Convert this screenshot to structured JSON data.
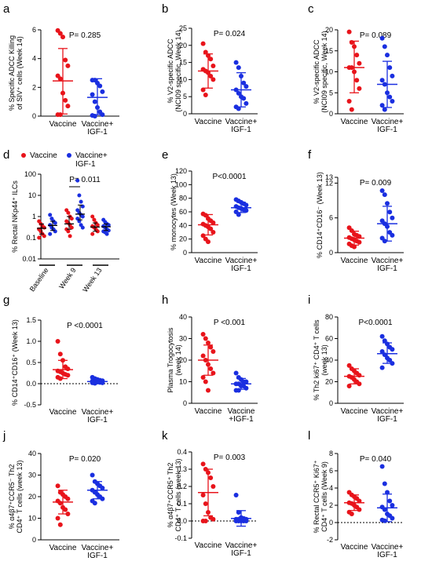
{
  "colors": {
    "vaccine": "#e8141b",
    "igf": "#1a2fe0"
  },
  "chart_data": [
    {
      "panel": "a",
      "type": "scatter",
      "pvalue": "P= 0.285",
      "ylabel": [
        "% Specific ADCC Killing",
        "of SIV⁺ cells (Week 14)"
      ],
      "ylim": [
        0,
        6
      ],
      "yticks": [
        "0",
        "2",
        "4",
        "6"
      ],
      "categories": [
        "Vaccine",
        "Vaccine+ IGF-1"
      ],
      "cat_lines": [
        [
          "Vaccine"
        ],
        [
          "Vaccine+",
          "IGF-1"
        ]
      ],
      "groups": [
        {
          "name": "Vaccine",
          "values": [
            5.95,
            5.75,
            5.5,
            3.9,
            3.5,
            2.8,
            2.6,
            1.6,
            1.1,
            0.7,
            0.1,
            0.1
          ],
          "mean": 2.45,
          "sd_low": 0.15,
          "sd_high": 4.7
        },
        {
          "name": "Vaccine+ IGF-1",
          "values": [
            2.5,
            2.5,
            2.3,
            2.1,
            1.7,
            1.5,
            1.0,
            0.6,
            0.3,
            0.1,
            0.05,
            0.0
          ],
          "mean": 1.3,
          "sd_low": 0.1,
          "sd_high": 2.6
        }
      ]
    },
    {
      "panel": "b",
      "type": "scatter",
      "pvalue": "P= 0.024",
      "ylabel": [
        "% V2-specific ADCC",
        "(NCI09 specific, Week 14)"
      ],
      "ylim": [
        0,
        25
      ],
      "yticks": [
        "0",
        "5",
        "10",
        "15",
        "20",
        "25"
      ],
      "categories": [
        "Vaccine",
        "Vaccine+ IGF-1"
      ],
      "cat_lines": [
        [
          "Vaccine"
        ],
        [
          "Vaccine+",
          "IGF-1"
        ]
      ],
      "groups": [
        {
          "name": "Vaccine",
          "values": [
            20.5,
            18,
            17,
            16,
            14,
            13,
            12.5,
            12,
            11,
            10,
            7,
            5.5
          ],
          "mean": 12.5,
          "sd_low": 7.5,
          "sd_high": 17.5
        },
        {
          "name": "Vaccine+ IGF-1",
          "values": [
            15,
            13.5,
            11,
            9,
            8,
            7,
            6,
            5,
            4.5,
            3,
            2,
            1.5
          ],
          "mean": 7,
          "sd_low": 2,
          "sd_high": 12
        }
      ]
    },
    {
      "panel": "c",
      "type": "scatter",
      "pvalue": "P= 0.089",
      "ylabel": [
        "% V2-specific ADCC",
        "(NCI09 specific, Week 14)"
      ],
      "ylim": [
        0,
        20
      ],
      "yticks": [
        "0",
        "5",
        "10",
        "15",
        "20"
      ],
      "categories": [
        "Vaccine",
        "Vaccine+ IGF-1"
      ],
      "cat_lines": [
        [
          "Vaccine"
        ],
        [
          "Vaccine+",
          "IGF-1"
        ]
      ],
      "groups": [
        {
          "name": "Vaccine",
          "values": [
            19.5,
            17,
            16,
            14,
            12,
            11,
            11,
            10,
            8,
            6,
            3,
            1
          ],
          "mean": 11,
          "sd_low": 5,
          "sd_high": 17.3
        },
        {
          "name": "Vaccine+ IGF-1",
          "values": [
            18,
            16,
            14,
            11,
            9,
            8,
            7,
            5,
            4,
            3,
            2,
            1
          ],
          "mean": 7,
          "sd_low": 1.5,
          "sd_high": 12.5
        }
      ]
    },
    {
      "panel": "d",
      "type": "scatter",
      "pvalue": "P= 0.011",
      "ylabel": [
        "% Rectal NKp44⁺ ILCs"
      ],
      "log": true,
      "ylim": [
        0.01,
        100
      ],
      "yticks": [
        "0.01",
        "0.1",
        "1",
        "10",
        "100"
      ],
      "categories": [
        "Baseline",
        "Week 9",
        "Week 13"
      ],
      "legend": [
        {
          "name": "Vaccine",
          "lines": [
            "Vaccine"
          ]
        },
        {
          "name": "Vaccine+ IGF-1",
          "lines": [
            "Vaccine+",
            "IGF-1"
          ]
        }
      ],
      "groups": [
        {
          "name": "Vaccine Baseline",
          "values": [
            0.6,
            0.45,
            0.35,
            0.3,
            0.25,
            0.2,
            0.15,
            0.12,
            0.1
          ],
          "median": 0.28,
          "q1": 0.15,
          "q3": 0.45
        },
        {
          "name": "Vaccine+ IGF-1 Baseline",
          "values": [
            1.2,
            0.8,
            0.6,
            0.5,
            0.4,
            0.3,
            0.25,
            0.2,
            0.15
          ],
          "median": 0.38,
          "q1": 0.22,
          "q3": 0.6
        },
        {
          "name": "Vaccine Week 9",
          "values": [
            2,
            1.5,
            1,
            0.8,
            0.6,
            0.5,
            0.4,
            0.3,
            0.25,
            0.2,
            0.12
          ],
          "median": 0.45,
          "q1": 0.25,
          "q3": 1.0
        },
        {
          "name": "Vaccine+ IGF-1 Week 9",
          "values": [
            50,
            10,
            5,
            3,
            2,
            1.5,
            1.2,
            1,
            0.8,
            0.6,
            0.4,
            0.3
          ],
          "median": 1.3,
          "q1": 0.7,
          "q3": 3.5
        },
        {
          "name": "Vaccine Week 13",
          "values": [
            1,
            0.7,
            0.5,
            0.4,
            0.35,
            0.3,
            0.25,
            0.2,
            0.15
          ],
          "median": 0.32,
          "q1": 0.2,
          "q3": 0.5
        },
        {
          "name": "Vaccine+ IGF-1 Week 13",
          "values": [
            0.7,
            0.55,
            0.45,
            0.4,
            0.35,
            0.3,
            0.25,
            0.22,
            0.2,
            0.18,
            0.15
          ],
          "median": 0.33,
          "q1": 0.22,
          "q3": 0.45
        }
      ]
    },
    {
      "panel": "e",
      "type": "scatter",
      "pvalue": "P<0.0001",
      "ylabel": [
        "% monocytes (Week 13)"
      ],
      "ylim": [
        0,
        120
      ],
      "yticks": [
        "0",
        "20",
        "40",
        "60",
        "80",
        "100",
        "120"
      ],
      "categories": [
        "Vaccine",
        "Vaccine+ IGF-1"
      ],
      "cat_lines": [
        [
          "Vaccine"
        ],
        [
          "Vaccine+",
          "IGF-1"
        ]
      ],
      "groups": [
        {
          "name": "Vaccine",
          "values": [
            57,
            55,
            50,
            47,
            44,
            42,
            40,
            38,
            35,
            30,
            25,
            20,
            16
          ],
          "mean": 41,
          "sd_low": 26,
          "sd_high": 56
        },
        {
          "name": "Vaccine+ IGF-1",
          "values": [
            78,
            76,
            74,
            72,
            70,
            68,
            66,
            65,
            63,
            62,
            60,
            56
          ],
          "mean": 66,
          "sd_low": 59,
          "sd_high": 74
        }
      ]
    },
    {
      "panel": "f",
      "type": "scatter",
      "pvalue": "P= 0.009",
      "ylabel": [
        "% CD14⁺CD16⁻ (Week 13)"
      ],
      "ylim": [
        0,
        13
      ],
      "yticks": [
        "0",
        "6",
        "12",
        "13"
      ],
      "categories": [
        "Vaccine",
        "Vaccine+ IGF-1"
      ],
      "cat_lines": [
        [
          "Vaccine"
        ],
        [
          "Vaccine+",
          "IGF-1"
        ]
      ],
      "groups": [
        {
          "name": "Vaccine",
          "values": [
            4.3,
            3.8,
            3.2,
            3,
            2.8,
            2.6,
            2.4,
            2.2,
            2,
            1.8,
            1.5,
            1.2,
            1
          ],
          "mean": 2.5,
          "sd_low": 1.3,
          "sd_high": 3.7
        },
        {
          "name": "Vaccine+ IGF-1",
          "values": [
            10.7,
            10,
            8.5,
            7,
            6,
            5.5,
            5,
            4.5,
            3.5,
            3,
            2.5,
            2
          ],
          "mean": 5,
          "sd_low": 2,
          "sd_high": 8
        }
      ]
    },
    {
      "panel": "g",
      "type": "scatter",
      "pvalue": "P <0.0001",
      "ylabel": [
        "% CD14⁺CD16⁺ (Week 13)"
      ],
      "zero_line": true,
      "ylim": [
        -0.5,
        1.5
      ],
      "yticks": [
        "-0.5",
        "0.0",
        "0.5",
        "1.0",
        "1.5"
      ],
      "categories": [
        "Vaccine",
        "Vaccine+ IGF-1"
      ],
      "cat_lines": [
        [
          "Vaccine"
        ],
        [
          "Vaccine+",
          "IGF-1"
        ]
      ],
      "groups": [
        {
          "name": "Vaccine",
          "values": [
            1.0,
            0.7,
            0.55,
            0.4,
            0.35,
            0.3,
            0.28,
            0.25,
            0.22,
            0.2,
            0.15,
            0.12
          ],
          "mean": 0.33,
          "sd_low": 0.12,
          "sd_high": 0.55
        },
        {
          "name": "Vaccine+ IGF-1",
          "values": [
            0.15,
            0.12,
            0.1,
            0.08,
            0.07,
            0.06,
            0.05,
            0.04,
            0.03,
            0.02,
            0.02,
            0.01
          ],
          "mean": 0.05,
          "sd_low": 0.0,
          "sd_high": 0.1
        }
      ]
    },
    {
      "panel": "h",
      "type": "scatter",
      "pvalue": "P <0.001",
      "ylabel": [
        "Plasma Trogocytosis",
        "(week 14)"
      ],
      "ylim": [
        0,
        40
      ],
      "yticks": [
        "0",
        "10",
        "20",
        "30",
        "40"
      ],
      "categories": [
        "Vaccine",
        "Vaccine +IGF-1"
      ],
      "cat_lines": [
        [
          "Vaccine"
        ],
        [
          "Vaccine",
          "+IGF-1"
        ]
      ],
      "groups": [
        {
          "name": "Vaccine",
          "values": [
            32,
            30,
            28,
            26,
            24,
            22,
            20,
            18,
            16,
            14,
            12,
            10,
            6
          ],
          "mean": 20,
          "sd_low": 13,
          "sd_high": 27
        },
        {
          "name": "Vaccine +IGF-1",
          "values": [
            14,
            12,
            11,
            10,
            10,
            9,
            9,
            8,
            8,
            7,
            6,
            6
          ],
          "mean": 9,
          "sd_low": 6.5,
          "sd_high": 11.5
        }
      ]
    },
    {
      "panel": "i",
      "type": "scatter",
      "pvalue": "P<0.0001",
      "ylabel": [
        "% Th2 ki67⁺ CD4⁺ T cells",
        "(week 13)"
      ],
      "ylim": [
        0,
        80
      ],
      "yticks": [
        "0",
        "20",
        "40",
        "60",
        "80"
      ],
      "categories": [
        "Vaccine",
        "Vaccine+ IGF-1"
      ],
      "cat_lines": [
        [
          "Vaccine"
        ],
        [
          "Vaccine+",
          "IGF-1"
        ]
      ],
      "groups": [
        {
          "name": "Vaccine",
          "values": [
            35,
            32,
            30,
            28,
            26,
            25,
            24,
            22,
            20,
            18,
            16
          ],
          "mean": 25,
          "sd_low": 18,
          "sd_high": 32
        },
        {
          "name": "Vaccine+ IGF-1",
          "values": [
            62,
            58,
            55,
            52,
            50,
            48,
            45,
            42,
            40,
            37,
            33
          ],
          "mean": 46,
          "sd_low": 37,
          "sd_high": 56
        }
      ]
    },
    {
      "panel": "j",
      "type": "scatter",
      "pvalue": "P= 0.020",
      "ylabel": [
        "% α4β7⁺CCR5⁻ Th2",
        "CD4⁺ T cells (week 13)"
      ],
      "ylim": [
        0,
        40
      ],
      "yticks": [
        "0",
        "10",
        "20",
        "30",
        "40"
      ],
      "categories": [
        "Vaccine",
        "Vaccine+ IGF-1"
      ],
      "cat_lines": [
        [
          "Vaccine"
        ],
        [
          "Vaccine+",
          "IGF-1"
        ]
      ],
      "groups": [
        {
          "name": "Vaccine",
          "values": [
            25,
            22,
            21,
            20,
            19,
            18,
            17,
            15,
            14,
            12,
            10,
            7
          ],
          "mean": 17.5,
          "sd_low": 12,
          "sd_high": 23
        },
        {
          "name": "Vaccine+ IGF-1",
          "values": [
            30,
            27,
            26,
            25,
            24,
            23,
            22,
            21,
            20,
            19,
            18,
            17
          ],
          "mean": 23,
          "sd_low": 19,
          "sd_high": 27
        }
      ]
    },
    {
      "panel": "k",
      "type": "scatter",
      "pvalue": "P= 0.003",
      "ylabel": [
        "% α4β7⁺CCR5⁺ Th2",
        "CD4⁺ T cells (week 13)"
      ],
      "zero_line": true,
      "ylim": [
        -0.1,
        0.4
      ],
      "yticks": [
        "-0.1",
        "0.0",
        "0.1",
        "0.2",
        "0.3",
        "0.4"
      ],
      "categories": [
        "Vaccine",
        "Vaccine+ IGF-1"
      ],
      "cat_lines": [
        [
          "Vaccine"
        ],
        [
          "Vaccine+",
          "IGF-1"
        ]
      ],
      "groups": [
        {
          "name": "Vaccine",
          "values": [
            0.33,
            0.3,
            0.28,
            0.25,
            0.2,
            0.15,
            0.1,
            0.05,
            0.02,
            0.01,
            0.0,
            0.0
          ],
          "mean": 0.165,
          "sd_low": 0.03,
          "sd_high": 0.3
        },
        {
          "name": "Vaccine+ IGF-1",
          "values": [
            0.15,
            0.05,
            0.02,
            0.015,
            0.01,
            0.01,
            0.01,
            0.005,
            0.0,
            0.0,
            0.0,
            0.0,
            0.0
          ],
          "mean": 0.015,
          "sd_low": -0.03,
          "sd_high": 0.06
        }
      ]
    },
    {
      "panel": "l",
      "type": "scatter",
      "pvalue": "P= 0.040",
      "ylabel": [
        "% Rectal CCR5⁺ Ki67⁺",
        "CD4⁺ T cells (Week 9)"
      ],
      "zero_line": true,
      "ylim": [
        -2,
        8
      ],
      "yticks": [
        "-2",
        "0",
        "2",
        "4",
        "6",
        "8"
      ],
      "categories": [
        "Vaccine",
        "Vaccine+ IGF-1"
      ],
      "cat_lines": [
        [
          "Vaccine"
        ],
        [
          "Vaccine+",
          "IGF-1"
        ]
      ],
      "groups": [
        {
          "name": "Vaccine",
          "values": [
            3.5,
            3.2,
            3,
            2.8,
            2.5,
            2.3,
            2.2,
            2,
            1.8,
            1.5,
            1.2,
            1
          ],
          "mean": 2.3,
          "sd_low": 1.4,
          "sd_high": 3.2
        },
        {
          "name": "Vaccine+ IGF-1",
          "values": [
            6.5,
            4.5,
            3.5,
            2.5,
            2,
            1.8,
            1.5,
            1,
            0.8,
            0.5,
            0.3,
            0.2
          ],
          "mean": 1.7,
          "sd_low": 0.1,
          "sd_high": 3.3
        }
      ]
    }
  ]
}
